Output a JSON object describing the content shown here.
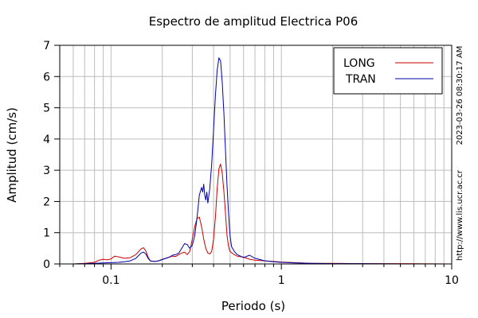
{
  "chart_data": {
    "type": "line",
    "title": "Espectro de amplitud Electrica P06",
    "xlabel": "Periodo (s)",
    "ylabel": "Amplitud (cm/s)",
    "x_scale": "log",
    "xlim": [
      0.05,
      10
    ],
    "ylim": [
      0,
      7
    ],
    "grid": true,
    "legend_position": "top-right",
    "x_tick_labels": [
      {
        "value": 0.1,
        "label": "0.1"
      },
      {
        "value": 1,
        "label": "1"
      },
      {
        "value": 10,
        "label": "10"
      }
    ],
    "y_tick_labels": [
      {
        "value": 0,
        "label": "0"
      },
      {
        "value": 1,
        "label": "1"
      },
      {
        "value": 2,
        "label": "2"
      },
      {
        "value": 3,
        "label": "3"
      },
      {
        "value": 4,
        "label": "4"
      },
      {
        "value": 5,
        "label": "5"
      },
      {
        "value": 6,
        "label": "6"
      },
      {
        "value": 7,
        "label": "7"
      }
    ],
    "series": [
      {
        "name": "LONG",
        "color": "#cc0000",
        "points": [
          [
            0.06,
            0.0
          ],
          [
            0.07,
            0.02
          ],
          [
            0.08,
            0.05
          ],
          [
            0.085,
            0.12
          ],
          [
            0.09,
            0.15
          ],
          [
            0.095,
            0.13
          ],
          [
            0.1,
            0.16
          ],
          [
            0.105,
            0.25
          ],
          [
            0.11,
            0.23
          ],
          [
            0.12,
            0.18
          ],
          [
            0.13,
            0.2
          ],
          [
            0.14,
            0.3
          ],
          [
            0.15,
            0.48
          ],
          [
            0.155,
            0.52
          ],
          [
            0.16,
            0.42
          ],
          [
            0.165,
            0.22
          ],
          [
            0.17,
            0.1
          ],
          [
            0.18,
            0.08
          ],
          [
            0.19,
            0.1
          ],
          [
            0.2,
            0.15
          ],
          [
            0.21,
            0.18
          ],
          [
            0.22,
            0.22
          ],
          [
            0.23,
            0.25
          ],
          [
            0.24,
            0.24
          ],
          [
            0.25,
            0.3
          ],
          [
            0.26,
            0.35
          ],
          [
            0.27,
            0.38
          ],
          [
            0.28,
            0.3
          ],
          [
            0.29,
            0.4
          ],
          [
            0.3,
            0.8
          ],
          [
            0.31,
            1.2
          ],
          [
            0.32,
            1.45
          ],
          [
            0.33,
            1.5
          ],
          [
            0.34,
            1.2
          ],
          [
            0.35,
            0.8
          ],
          [
            0.36,
            0.5
          ],
          [
            0.37,
            0.35
          ],
          [
            0.38,
            0.32
          ],
          [
            0.39,
            0.4
          ],
          [
            0.4,
            0.8
          ],
          [
            0.41,
            1.5
          ],
          [
            0.42,
            2.4
          ],
          [
            0.43,
            3.05
          ],
          [
            0.44,
            3.2
          ],
          [
            0.45,
            2.9
          ],
          [
            0.46,
            2.3
          ],
          [
            0.47,
            1.6
          ],
          [
            0.48,
            0.9
          ],
          [
            0.49,
            0.55
          ],
          [
            0.5,
            0.4
          ],
          [
            0.52,
            0.32
          ],
          [
            0.55,
            0.25
          ],
          [
            0.6,
            0.22
          ],
          [
            0.65,
            0.15
          ],
          [
            0.7,
            0.12
          ],
          [
            0.8,
            0.1
          ],
          [
            0.9,
            0.08
          ],
          [
            1.0,
            0.06
          ],
          [
            1.2,
            0.04
          ],
          [
            1.5,
            0.02
          ],
          [
            2.0,
            0.02
          ],
          [
            3.0,
            0.01
          ],
          [
            5.0,
            0.01
          ],
          [
            10.0,
            0.0
          ]
        ]
      },
      {
        "name": "TRAN",
        "color": "#0000aa",
        "points": [
          [
            0.06,
            0.0
          ],
          [
            0.07,
            0.01
          ],
          [
            0.08,
            0.02
          ],
          [
            0.09,
            0.03
          ],
          [
            0.1,
            0.04
          ],
          [
            0.11,
            0.05
          ],
          [
            0.12,
            0.07
          ],
          [
            0.13,
            0.1
          ],
          [
            0.14,
            0.18
          ],
          [
            0.15,
            0.35
          ],
          [
            0.155,
            0.38
          ],
          [
            0.16,
            0.32
          ],
          [
            0.165,
            0.18
          ],
          [
            0.17,
            0.1
          ],
          [
            0.18,
            0.08
          ],
          [
            0.19,
            0.1
          ],
          [
            0.2,
            0.14
          ],
          [
            0.21,
            0.18
          ],
          [
            0.22,
            0.22
          ],
          [
            0.23,
            0.28
          ],
          [
            0.24,
            0.3
          ],
          [
            0.25,
            0.35
          ],
          [
            0.26,
            0.5
          ],
          [
            0.27,
            0.65
          ],
          [
            0.28,
            0.62
          ],
          [
            0.29,
            0.5
          ],
          [
            0.3,
            0.6
          ],
          [
            0.31,
            0.9
          ],
          [
            0.32,
            1.5
          ],
          [
            0.33,
            2.2
          ],
          [
            0.34,
            2.45
          ],
          [
            0.345,
            2.3
          ],
          [
            0.35,
            2.55
          ],
          [
            0.355,
            2.2
          ],
          [
            0.36,
            2.05
          ],
          [
            0.365,
            2.3
          ],
          [
            0.37,
            1.95
          ],
          [
            0.38,
            2.4
          ],
          [
            0.39,
            3.2
          ],
          [
            0.4,
            4.3
          ],
          [
            0.41,
            5.4
          ],
          [
            0.42,
            6.2
          ],
          [
            0.43,
            6.6
          ],
          [
            0.435,
            6.55
          ],
          [
            0.44,
            6.5
          ],
          [
            0.45,
            5.8
          ],
          [
            0.46,
            4.8
          ],
          [
            0.47,
            3.6
          ],
          [
            0.48,
            2.5
          ],
          [
            0.49,
            1.6
          ],
          [
            0.5,
            0.9
          ],
          [
            0.51,
            0.55
          ],
          [
            0.53,
            0.4
          ],
          [
            0.55,
            0.3
          ],
          [
            0.6,
            0.2
          ],
          [
            0.65,
            0.28
          ],
          [
            0.7,
            0.18
          ],
          [
            0.8,
            0.1
          ],
          [
            0.9,
            0.07
          ],
          [
            1.0,
            0.05
          ],
          [
            1.2,
            0.03
          ],
          [
            1.5,
            0.02
          ],
          [
            2.0,
            0.01
          ],
          [
            3.0,
            0.01
          ],
          [
            5.0,
            0.0
          ],
          [
            10.0,
            0.0
          ]
        ]
      }
    ]
  },
  "side_text": {
    "timestamp": "2023-03-26 08:30:17 AM",
    "url": "http://www.lis.ucr.ac.cr"
  }
}
